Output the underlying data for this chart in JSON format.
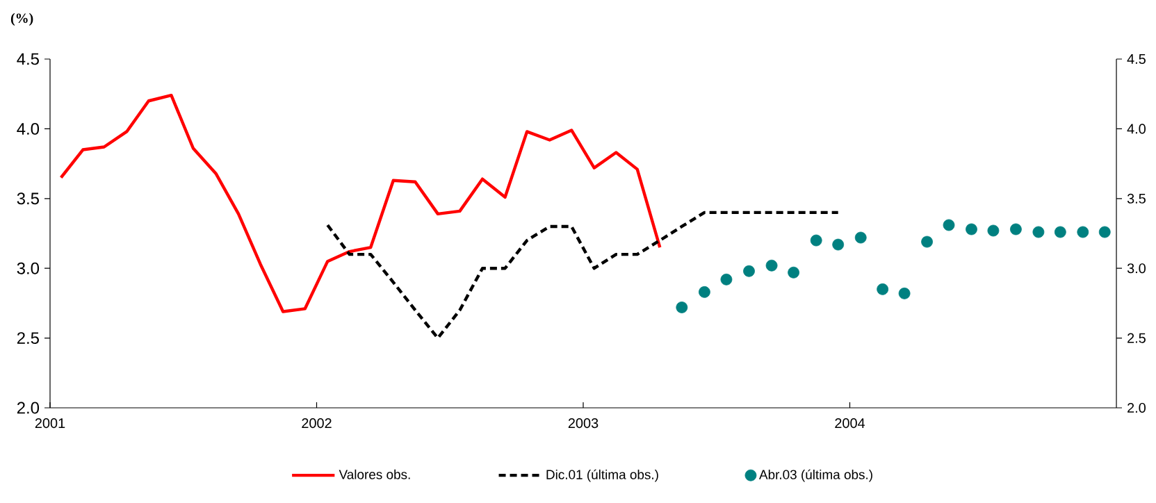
{
  "chart_data": {
    "type": "line",
    "ylabel": "(%)",
    "xlim": [
      "2001",
      "2005"
    ],
    "xticks": [
      "2001",
      "2002",
      "2003",
      "2004"
    ],
    "ylim": [
      2,
      4.5
    ],
    "yticks": [
      {
        "value": 2,
        "label": "2.0"
      },
      {
        "value": 2.5,
        "label": "2.5"
      },
      {
        "value": 3,
        "label": "3.0"
      },
      {
        "value": 3.5,
        "label": "3.5"
      },
      {
        "value": 4,
        "label": "4.0"
      },
      {
        "value": 4.5,
        "label": "4.5"
      }
    ],
    "y2lim": [
      2,
      4.5
    ],
    "y2ticks": [
      {
        "value": 2,
        "label": "2.0"
      },
      {
        "value": 2.5,
        "label": "2.5"
      },
      {
        "value": 3,
        "label": "3.0"
      },
      {
        "value": 3.5,
        "label": "3.5"
      },
      {
        "value": 4,
        "label": "4.0"
      },
      {
        "value": 4.5,
        "label": "4.5"
      }
    ],
    "legend": "bottom",
    "series": [
      {
        "name": "Valores obs.",
        "color": "#ff0000",
        "line_style": "solid",
        "x": [
          "2001-01-16",
          "2001-02-15",
          "2001-03-16",
          "2001-04-16",
          "2001-05-16",
          "2001-06-16",
          "2001-07-16",
          "2001-08-16",
          "2001-09-16",
          "2001-10-16",
          "2001-11-16",
          "2001-12-16",
          "2002-01-16",
          "2002-02-15",
          "2002-03-16",
          "2002-04-16",
          "2002-05-16",
          "2002-06-16",
          "2002-07-16",
          "2002-08-16",
          "2002-09-16",
          "2002-10-16",
          "2002-11-16",
          "2002-12-16",
          "2003-01-16",
          "2003-02-15",
          "2003-03-16",
          "2003-04-16"
        ],
        "values": [
          3.65,
          3.85,
          3.87,
          3.98,
          4.2,
          4.24,
          3.86,
          3.68,
          3.39,
          3.03,
          2.69,
          2.71,
          3.05,
          3.12,
          3.15,
          3.63,
          3.62,
          3.39,
          3.41,
          3.64,
          3.51,
          3.98,
          3.92,
          3.99,
          3.72,
          3.83,
          3.71,
          3.15
        ]
      },
      {
        "name": "Dic.01 (última obs.)",
        "color": "#000000",
        "line_style": "dashed",
        "x": [
          "2002-01-16",
          "2002-02-15",
          "2002-03-16",
          "2002-04-16",
          "2002-05-16",
          "2002-06-16",
          "2002-07-16",
          "2002-08-16",
          "2002-09-16",
          "2002-10-16",
          "2002-11-16",
          "2002-12-16",
          "2003-01-16",
          "2003-02-15",
          "2003-03-16",
          "2003-04-16",
          "2003-05-16",
          "2003-06-16",
          "2003-07-16",
          "2003-08-16",
          "2003-09-16",
          "2003-10-16",
          "2003-11-16",
          "2003-12-16"
        ],
        "values": [
          3.31,
          3.1,
          3.1,
          2.9,
          2.7,
          2.5,
          2.7,
          3.0,
          3.0,
          3.2,
          3.3,
          3.3,
          3.0,
          3.1,
          3.1,
          3.2,
          3.3,
          3.4,
          3.4,
          3.4,
          3.4,
          3.4,
          3.4,
          3.4
        ]
      },
      {
        "name": "Abr.03 (última obs.)",
        "type": "scatter",
        "color": "#008080",
        "marker": "circle",
        "x": [
          "2003-05-16",
          "2003-06-16",
          "2003-07-16",
          "2003-08-16",
          "2003-09-16",
          "2003-10-16",
          "2003-11-16",
          "2003-12-16",
          "2004-01-16",
          "2004-02-15",
          "2004-03-16",
          "2004-04-16",
          "2004-05-16",
          "2004-06-16",
          "2004-07-16",
          "2004-08-16",
          "2004-09-16",
          "2004-10-16",
          "2004-11-16",
          "2004-12-16"
        ],
        "values": [
          2.72,
          2.83,
          2.92,
          2.98,
          3.02,
          2.97,
          3.2,
          3.17,
          3.22,
          2.85,
          2.82,
          3.19,
          3.31,
          3.28,
          3.27,
          3.28,
          3.26,
          3.26,
          3.26,
          3.26
        ]
      }
    ]
  }
}
